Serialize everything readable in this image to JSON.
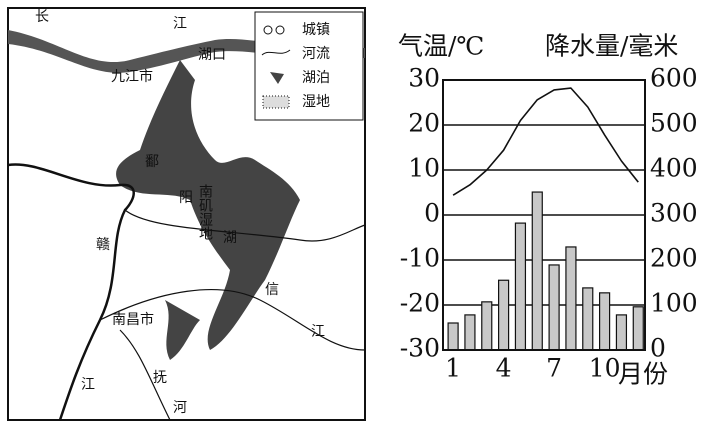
{
  "map": {
    "labels": [
      "长",
      "江",
      "湖口",
      "九江市",
      "鄱",
      "阳",
      "湖",
      "南矶湿地",
      "赣",
      "南昌市",
      "信",
      "江",
      "抚",
      "河",
      "江"
    ],
    "legend": [
      "城镇",
      "河流",
      "湖泊",
      "湿地"
    ]
  },
  "chart_data": {
    "type": "climate",
    "y_label": "气温/℃",
    "y2_label": "降水量/毫米",
    "x_label": "月份",
    "x": [
      1,
      2,
      3,
      4,
      5,
      6,
      7,
      8,
      9,
      10,
      11,
      12
    ],
    "xlim": [
      0.4,
      12.4
    ],
    "xticks": [
      1,
      4,
      7,
      10
    ],
    "ylim": [
      -30,
      30
    ],
    "yticks": [
      -30,
      -20,
      -10,
      0,
      10,
      20,
      30
    ],
    "y2lim": [
      0,
      600
    ],
    "y2ticks": [
      0,
      100,
      200,
      300,
      400,
      500,
      600
    ],
    "grid": true,
    "series": [
      {
        "type": "line",
        "axis": "y",
        "color": "#111111",
        "values": [
          4.4,
          6.7,
          10,
          14.4,
          21,
          25.6,
          27.8,
          28.2,
          24,
          17.8,
          12,
          7.3
        ]
      },
      {
        "type": "bar",
        "axis": "y2",
        "color": "#c8c8c8",
        "values": [
          60,
          78,
          107,
          155,
          282,
          351,
          189,
          229,
          138,
          127,
          78,
          96
        ]
      }
    ]
  }
}
